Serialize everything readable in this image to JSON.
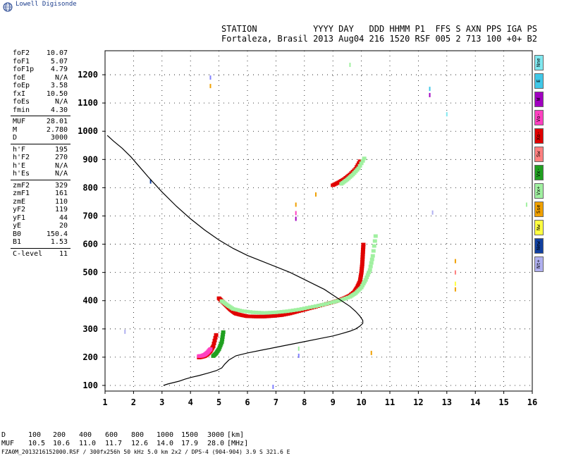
{
  "header": {
    "brand": "Lowell Digisonde",
    "station_label": "STATION",
    "col_labels": "YYYY DAY   DDD HHMM P1  FFS S AXN PPS IGA PS",
    "station_name": "Fortaleza, Brasil",
    "values": "2013 Aug04 216 1520 RSF 005 2 713 100 +0+ B2"
  },
  "params": [
    {
      "label": "foF2",
      "value": "10.07"
    },
    {
      "label": "foF1",
      "value": "5.07"
    },
    {
      "label": "foF1p",
      "value": "4.79"
    },
    {
      "label": "foE",
      "value": "N/A"
    },
    {
      "label": "foEp",
      "value": "3.58"
    },
    {
      "label": "fxI",
      "value": "10.50"
    },
    {
      "label": "foEs",
      "value": "N/A"
    },
    {
      "label": "fmin",
      "value": "4.30"
    },
    {
      "label": "MUF",
      "value": "28.01"
    },
    {
      "label": "M",
      "value": "2.780"
    },
    {
      "label": "D",
      "value": "3000"
    },
    {
      "label": "h'F",
      "value": "195"
    },
    {
      "label": "h'F2",
      "value": "270"
    },
    {
      "label": "h'E",
      "value": "N/A"
    },
    {
      "label": "h'Es",
      "value": "N/A"
    },
    {
      "label": "zmF2",
      "value": "329"
    },
    {
      "label": "zmF1",
      "value": "161"
    },
    {
      "label": "zmE",
      "value": "110"
    },
    {
      "label": "yF2",
      "value": "119"
    },
    {
      "label": "yF1",
      "value": "44"
    },
    {
      "label": "yE",
      "value": "20"
    },
    {
      "label": "B0",
      "value": "150.4"
    },
    {
      "label": "B1",
      "value": "1.53"
    },
    {
      "label": "C-level",
      "value": "11"
    }
  ],
  "legend": [
    {
      "label": "Nne",
      "color": "#80e8f0"
    },
    {
      "label": "E",
      "color": "#40c8e8"
    },
    {
      "label": "W",
      "color": "#a000c0"
    },
    {
      "label": "Vo-",
      "color": "#ff40c0"
    },
    {
      "label": "Xo-",
      "color": "#e00000"
    },
    {
      "label": "Sw",
      "color": "#ff8080"
    },
    {
      "label": "Vx-",
      "color": "#20a020"
    },
    {
      "label": "Vx+",
      "color": "#a0f0a0"
    },
    {
      "label": "Sse",
      "color": "#f0a000"
    },
    {
      "label": "Nw",
      "color": "#ffff40"
    },
    {
      "label": "New",
      "color": "#1040a0"
    },
    {
      "label": "Nt+",
      "color": "#b0b0f0"
    }
  ],
  "muf_table": {
    "d_label": "D",
    "d_values": [
      "100",
      "200",
      "400",
      "600",
      "800",
      "1000",
      "1500",
      "3000"
    ],
    "d_unit": "[km]",
    "muf_label": "MUF",
    "muf_values": [
      "10.5",
      "10.6",
      "11.0",
      "11.7",
      "12.6",
      "14.0",
      "17.9",
      "28.0"
    ],
    "muf_unit": "[MHz]"
  },
  "footer": "FZA0M_2013216152000.RSF / 300fx256h 50 kHz 5.0 km 2x2 / DPS-4 (904-904)  3.9 S 321.6 E",
  "chart_data": {
    "type": "scatter",
    "xlim": [
      1,
      16
    ],
    "ylim": [
      80,
      1285
    ],
    "x_ticks": [
      1,
      2,
      3,
      4,
      5,
      6,
      7,
      8,
      9,
      10,
      11,
      12,
      13,
      14,
      15,
      16
    ],
    "y_ticks": [
      100,
      200,
      300,
      400,
      500,
      600,
      700,
      800,
      900,
      1000,
      1100,
      1200
    ],
    "grid": true,
    "profile_line": {
      "x": [
        3.05,
        3.2,
        3.4,
        3.6,
        3.8,
        4.0,
        4.3,
        4.6,
        4.9,
        5.1,
        5.2,
        5.35,
        5.6,
        6.0,
        6.5,
        7.0,
        7.5,
        8.0,
        8.5,
        9.0,
        9.3,
        9.6,
        9.8,
        9.95,
        10.05,
        10.05,
        9.95,
        9.8,
        9.6,
        9.3,
        9.0,
        8.7,
        8.3,
        7.9,
        7.5,
        7.0,
        6.5,
        6.0,
        5.5,
        5.0,
        4.5,
        4.0,
        3.5,
        3.0,
        2.5,
        2.2,
        1.9,
        1.6,
        1.3,
        1.08
      ],
      "y": [
        100,
        105,
        110,
        115,
        122,
        128,
        135,
        143,
        152,
        162,
        175,
        190,
        205,
        215,
        225,
        235,
        245,
        255,
        265,
        275,
        283,
        292,
        300,
        310,
        320,
        330,
        345,
        362,
        380,
        400,
        420,
        440,
        460,
        480,
        500,
        520,
        540,
        560,
        585,
        615,
        650,
        690,
        735,
        785,
        840,
        875,
        910,
        940,
        965,
        985
      ]
    },
    "traces": [
      {
        "mode": "O",
        "color": "#e00000",
        "x": [
          5.0,
          5.1,
          5.2,
          5.3,
          5.4,
          5.5,
          5.6,
          5.8,
          6.0,
          6.3,
          6.6,
          6.9,
          7.2,
          7.5,
          7.8,
          8.1,
          8.4,
          8.7,
          9.0,
          9.2,
          9.4,
          9.6,
          9.75,
          9.85,
          9.95,
          10.0,
          10.03,
          10.05,
          10.07
        ],
        "y": [
          410,
          400,
          390,
          380,
          370,
          362,
          355,
          350,
          346,
          345,
          345,
          347,
          350,
          356,
          364,
          372,
          380,
          388,
          396,
          402,
          410,
          420,
          432,
          448,
          470,
          500,
          530,
          565,
          600
        ]
      },
      {
        "mode": "X",
        "color": "#a0f0a0",
        "x": [
          5.1,
          5.3,
          5.5,
          5.8,
          6.2,
          6.6,
          7.0,
          7.4,
          7.8,
          8.2,
          8.6,
          9.0,
          9.3,
          9.6,
          9.8,
          10.0,
          10.15,
          10.3,
          10.4,
          10.5
        ],
        "y": [
          400,
          385,
          372,
          365,
          360,
          358,
          360,
          364,
          370,
          378,
          386,
          396,
          404,
          415,
          428,
          448,
          475,
          510,
          560,
          630
        ]
      },
      {
        "mode": "Os",
        "color": "#e00000",
        "x": [
          4.3,
          4.4,
          4.5,
          4.6,
          4.7,
          4.8,
          4.9
        ],
        "y": [
          200,
          202,
          205,
          212,
          222,
          240,
          280
        ]
      },
      {
        "mode": "Vo",
        "color": "#ff40c0",
        "x": [
          4.3,
          4.4,
          4.5,
          4.6,
          4.7
        ],
        "y": [
          205,
          206,
          210,
          218,
          230
        ]
      },
      {
        "mode": "Xs",
        "color": "#20a020",
        "x": [
          4.8,
          4.9,
          5.0,
          5.1,
          5.15
        ],
        "y": [
          205,
          215,
          230,
          255,
          290
        ]
      },
      {
        "mode": "O2",
        "color": "#e00000",
        "x": [
          9.0,
          9.2,
          9.4,
          9.6,
          9.8,
          9.95
        ],
        "y": [
          810,
          820,
          832,
          848,
          868,
          895
        ]
      },
      {
        "mode": "X2",
        "color": "#a0f0a0",
        "x": [
          9.3,
          9.5,
          9.7,
          9.9,
          10.1
        ],
        "y": [
          815,
          830,
          848,
          870,
          905
        ]
      }
    ]
  }
}
